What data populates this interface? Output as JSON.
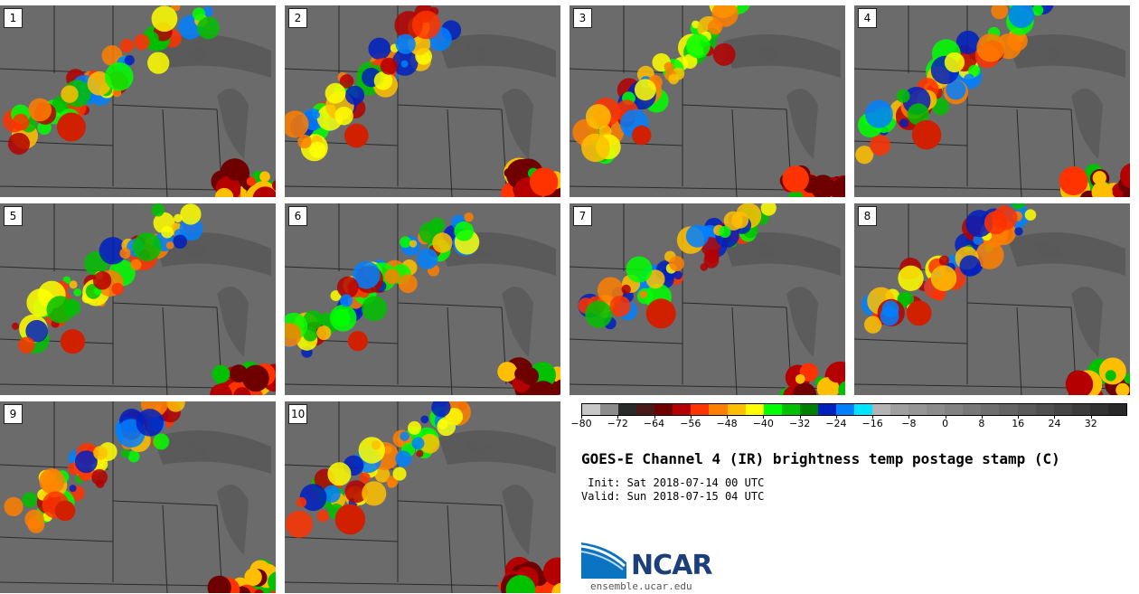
{
  "panels": [
    {
      "label": "1"
    },
    {
      "label": "2"
    },
    {
      "label": "3"
    },
    {
      "label": "4"
    },
    {
      "label": "5"
    },
    {
      "label": "6"
    },
    {
      "label": "7"
    },
    {
      "label": "8"
    },
    {
      "label": "9"
    },
    {
      "label": "10"
    }
  ],
  "colorbar": {
    "colors": [
      "#c8c8c8",
      "#8c8c8c",
      "#2a2a2a",
      "#4a1a1a",
      "#6e0000",
      "#b40000",
      "#ff3300",
      "#ff7f00",
      "#ffbf00",
      "#ffff00",
      "#00ff00",
      "#00c000",
      "#008000",
      "#0020c0",
      "#0080ff",
      "#00e5ff",
      "#b4b4b4",
      "#a0a0a0",
      "#969696",
      "#8c8c8c",
      "#828282",
      "#787878",
      "#6e6e6e",
      "#646464",
      "#5a5a5a",
      "#505050",
      "#464646",
      "#3c3c3c",
      "#323232",
      "#282828"
    ],
    "tick_labels": [
      "−80",
      "−72",
      "−64",
      "−56",
      "−48",
      "−40",
      "−32",
      "−24",
      "−16",
      "−8",
      "0",
      "8",
      "16",
      "24",
      "32"
    ],
    "tick_values": [
      -80,
      -72,
      -64,
      -56,
      -48,
      -40,
      -32,
      -24,
      -16,
      -8,
      0,
      8,
      16,
      24,
      32
    ],
    "min": -80,
    "max": 40
  },
  "title": "GOES-E Channel 4 (IR) brightness temp postage stamp (C)",
  "init_line": " Init: Sat 2018-07-14 00 UTC",
  "valid_line": "Valid: Sun 2018-07-15 04 UTC",
  "logo": {
    "text": "NCAR",
    "url": "ensemble.ucar.edu"
  }
}
